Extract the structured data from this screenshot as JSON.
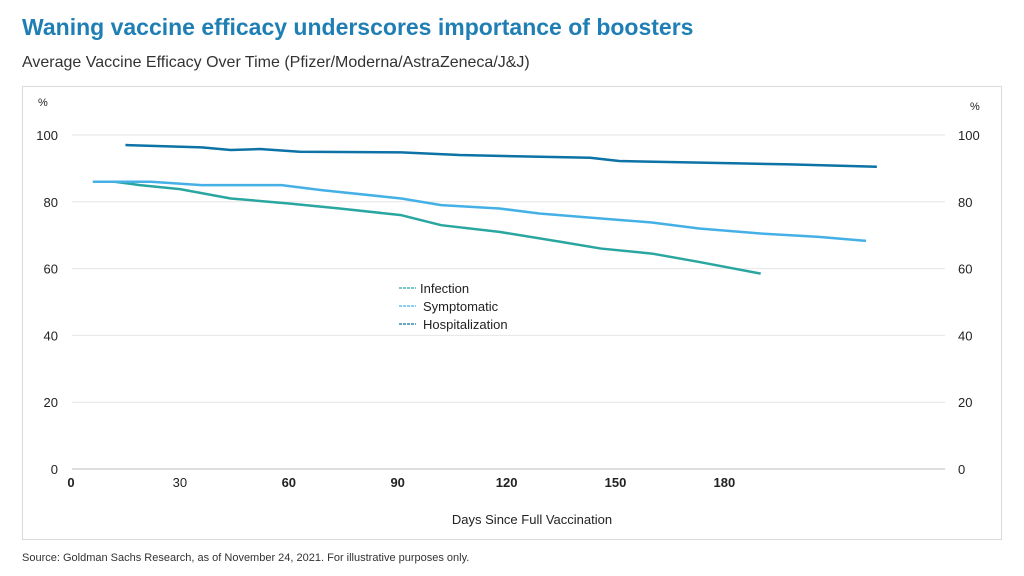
{
  "title": "Waning vaccine efficacy underscores importance of boosters",
  "subtitle": "Average Vaccine Efficacy Over Time (Pfizer/Moderna/AstraZeneca/J&J)",
  "source": "Source: Goldman Sachs Research, as of November 24, 2021. For illustrative purposes only.",
  "chart_data": {
    "type": "line",
    "xlabel": "Days Since Full Vaccination",
    "ylabel_left": "%",
    "ylabel_right": "%",
    "xlim": [
      0,
      230
    ],
    "ylim": [
      0,
      100
    ],
    "x_ticks": [
      0,
      30,
      60,
      90,
      120,
      150,
      180
    ],
    "y_ticks": [
      0,
      20,
      40,
      60,
      80,
      100
    ],
    "grid": true,
    "legend": "center",
    "series": [
      {
        "name": "Infection",
        "color": "#2aa6a0",
        "x": [
          12,
          19,
          30,
          44,
          60,
          74,
          91,
          102,
          118,
          135,
          146,
          160,
          173,
          190
        ],
        "y": [
          86,
          85,
          83.8,
          81,
          79.5,
          78,
          76,
          73,
          71,
          68,
          66,
          64.5,
          62,
          58.5
        ]
      },
      {
        "name": "Symptomatic",
        "color": "#45b0e6",
        "x": [
          6,
          22,
          36,
          58,
          69,
          91,
          102,
          118,
          129,
          146,
          160,
          173,
          190,
          206,
          219
        ],
        "y": [
          86,
          86,
          85,
          85,
          83.5,
          81,
          79,
          78,
          76.5,
          75,
          73.8,
          72,
          70.5,
          69.5,
          68.3
        ]
      },
      {
        "name": "Hospitalization",
        "color": "#0d72a6",
        "x": [
          15,
          36,
          44,
          52,
          63,
          91,
          107,
          124,
          143,
          151,
          184,
          198,
          222
        ],
        "y": [
          97,
          96.3,
          95.5,
          95.8,
          95,
          94.8,
          94,
          93.6,
          93.2,
          92.2,
          91.5,
          91.2,
          90.5
        ]
      }
    ]
  }
}
